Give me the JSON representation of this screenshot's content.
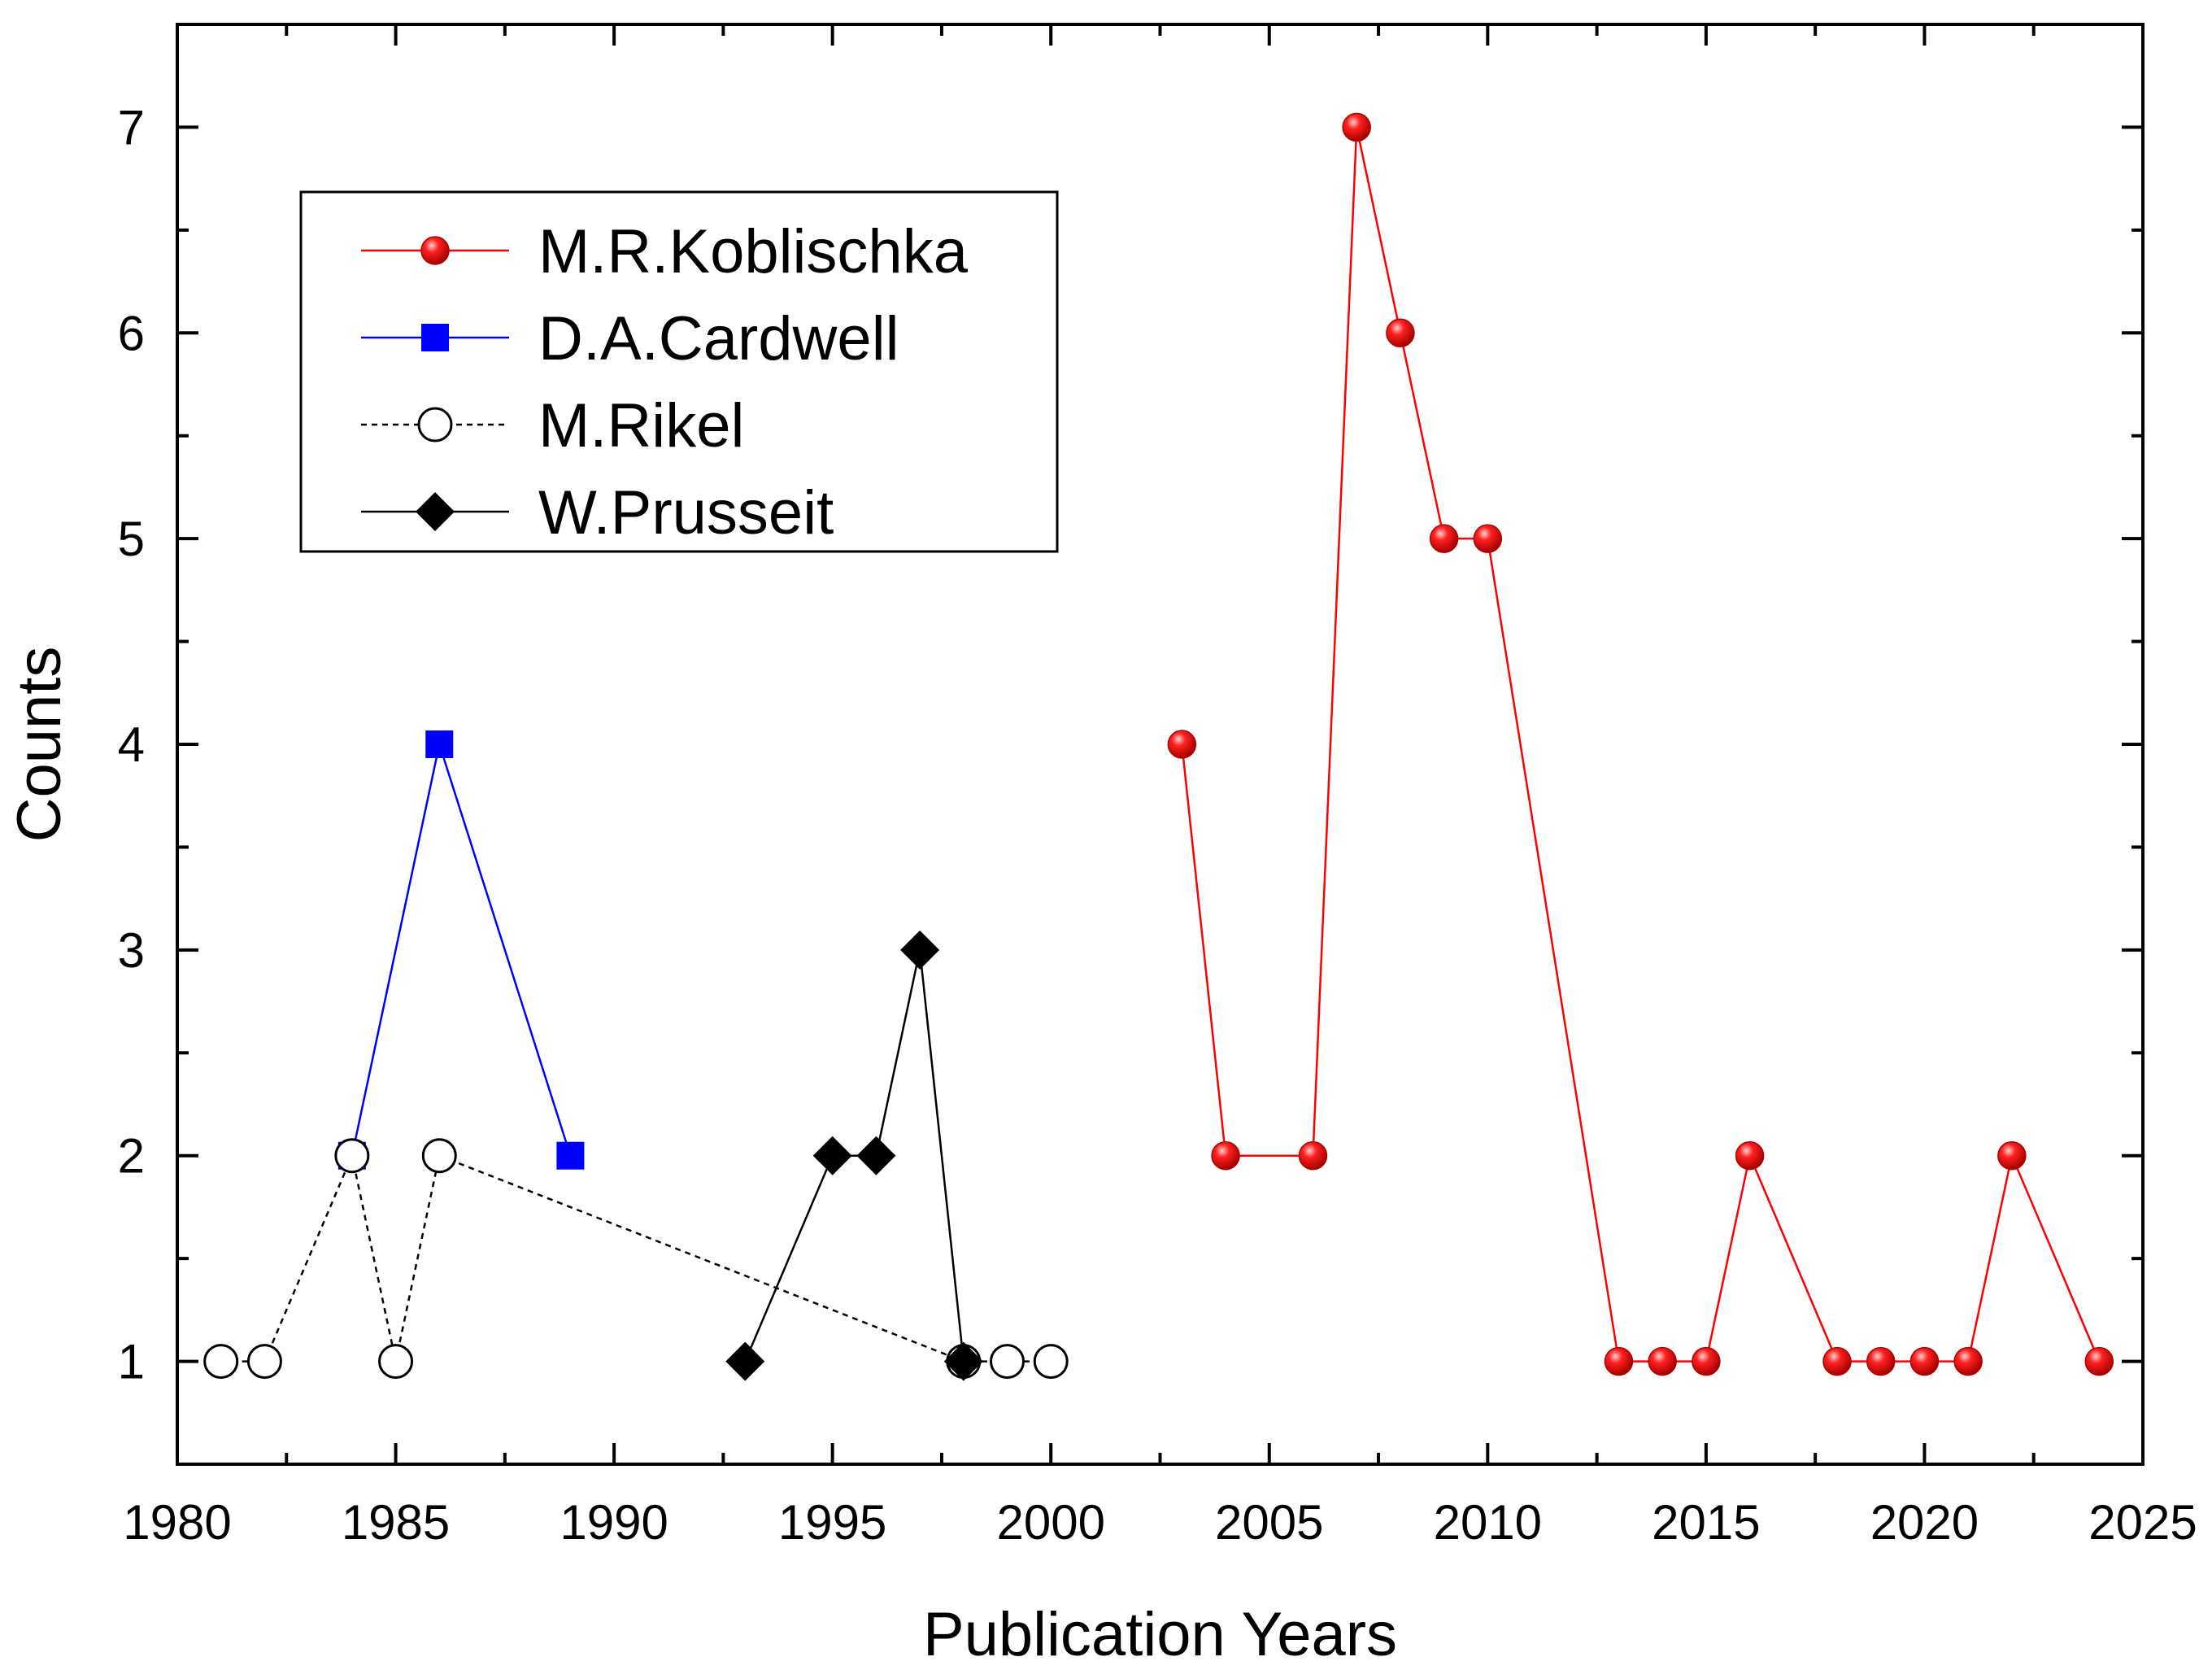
{
  "chart_data": {
    "type": "line",
    "xlabel": "Publication Years",
    "ylabel": "Counts",
    "xlim": [
      1980,
      2025
    ],
    "ylim": [
      0.5,
      7.5
    ],
    "xticks": [
      1980,
      1985,
      1990,
      1995,
      2000,
      2005,
      2010,
      2015,
      2020,
      2025
    ],
    "yticks": [
      1,
      2,
      3,
      4,
      5,
      6,
      7
    ],
    "legend_position": "top-left",
    "series": [
      {
        "name": "M.R.Koblischka",
        "color": "#ff0000",
        "marker": "sphere",
        "line": "solid",
        "x": [
          2003,
          2004,
          2006,
          2007,
          2008,
          2009,
          2010,
          2013,
          2014,
          2015,
          2016,
          2018,
          2019,
          2020,
          2021,
          2022,
          2024
        ],
        "values": [
          4,
          2,
          2,
          7,
          6,
          5,
          5,
          1,
          1,
          1,
          2,
          1,
          1,
          1,
          1,
          2,
          1
        ]
      },
      {
        "name": "D.A.Cardwell",
        "color": "#0000ff",
        "marker": "square",
        "line": "solid",
        "x": [
          1984,
          1986,
          1989
        ],
        "values": [
          2,
          4,
          2
        ]
      },
      {
        "name": "M.Rikel",
        "color": "#000000",
        "marker": "open-circle",
        "line": "dashed",
        "x": [
          1981,
          1982,
          1984,
          1985,
          1986,
          1998,
          1999,
          2000
        ],
        "values": [
          1,
          1,
          2,
          1,
          2,
          1,
          1,
          1
        ]
      },
      {
        "name": "W.Prusseit",
        "color": "#000000",
        "marker": "diamond",
        "line": "solid",
        "x": [
          1993,
          1995,
          1996,
          1997,
          1998
        ],
        "values": [
          1,
          2,
          2,
          3,
          1
        ]
      }
    ]
  }
}
